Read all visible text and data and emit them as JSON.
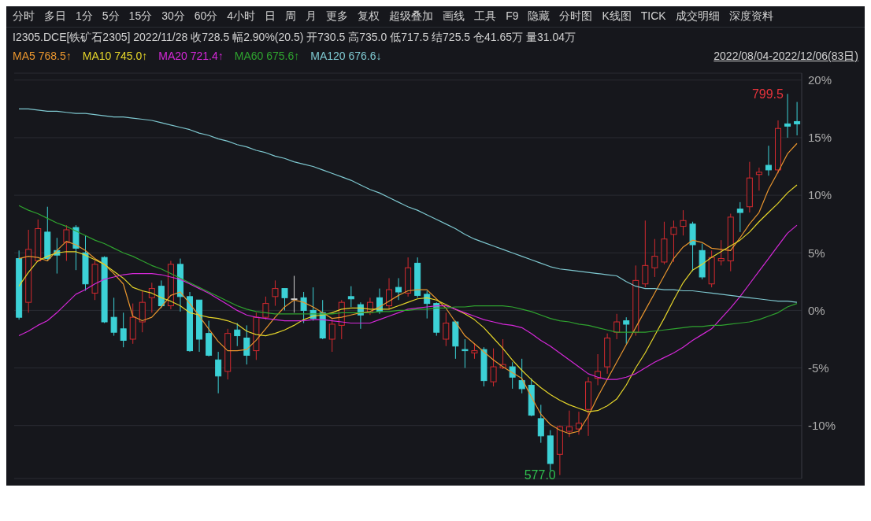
{
  "chart_data": {
    "type": "candlestick",
    "title": "I2305.DCE[铁矿石2305]  2022/11/28 收728.5 幅2.90%(20.5) 开730.5 高735.0 低717.5 结725.5 仓41.65万 量31.04万",
    "subtitle": "2022/08/04-2022/12/06(83日)",
    "annotations": [
      "分时",
      "多日",
      "1分",
      "5分",
      "15分",
      "30分",
      "60分",
      "4小时",
      "日",
      "周",
      "月",
      "更多",
      "复权",
      "超级叠加",
      "画线",
      "工具",
      "F9",
      "隐藏",
      "分时图",
      "K线图",
      "TICK",
      "成交明细",
      "深度资料",
      "799.5",
      "577.0"
    ],
    "categories": [
      null,
      null,
      null,
      null,
      null,
      null,
      null,
      null,
      null,
      null,
      null,
      null,
      null,
      null,
      null,
      null,
      null,
      null,
      null,
      null,
      null,
      null,
      null,
      null,
      null,
      null,
      null,
      null,
      null,
      null,
      null,
      null,
      null,
      null,
      null,
      null,
      null,
      null,
      null,
      null,
      null,
      null,
      null,
      null,
      null,
      null,
      null,
      null,
      null,
      null,
      null,
      null,
      null,
      null,
      null,
      null,
      null,
      null,
      null,
      null,
      null,
      null,
      null,
      null,
      null,
      null,
      null,
      null,
      null,
      null,
      null,
      null,
      null,
      null,
      null,
      null,
      null,
      null,
      null,
      null,
      null,
      null,
      null
    ],
    "ohlc": [
      [
        4.5,
        5.2,
        -0.8,
        -0.6
      ],
      [
        0.7,
        7.0,
        -0.2,
        5.3
      ],
      [
        4.3,
        7.9,
        4.2,
        7.1
      ],
      [
        6.8,
        9.0,
        4.3,
        4.5
      ],
      [
        5.2,
        6.3,
        3.2,
        4.8
      ],
      [
        5.9,
        7.4,
        4.3,
        7.0
      ],
      [
        7.2,
        7.4,
        3.5,
        5.4
      ],
      [
        5.0,
        6.5,
        1.7,
        2.3
      ],
      [
        1.5,
        4.3,
        0.9,
        4.0
      ],
      [
        4.6,
        4.7,
        -1.1,
        -1.0
      ],
      [
        -0.6,
        1.1,
        -2.2,
        -1.9
      ],
      [
        -1.6,
        -0.2,
        -3.2,
        -2.6
      ],
      [
        -2.5,
        0.6,
        -2.9,
        -0.6
      ],
      [
        -1.0,
        1.7,
        -1.9,
        0.7
      ],
      [
        1.1,
        2.4,
        -0.2,
        1.9
      ],
      [
        2.1,
        2.6,
        0.2,
        0.4
      ],
      [
        0.4,
        4.3,
        0.1,
        4.0
      ],
      [
        4.0,
        4.5,
        -0.1,
        1.2
      ],
      [
        1.2,
        1.6,
        -3.6,
        -3.5
      ],
      [
        0.9,
        0.9,
        -3.6,
        -2.5
      ],
      [
        -2.0,
        -0.9,
        -4.0,
        -3.9
      ],
      [
        -4.3,
        -3.6,
        -7.2,
        -5.7
      ],
      [
        -5.3,
        -1.6,
        -6.0,
        -2.0
      ],
      [
        -1.7,
        -1.1,
        -3.1,
        -2.2
      ],
      [
        -2.4,
        -1.3,
        -4.7,
        -3.9
      ],
      [
        -3.5,
        -0.2,
        -4.3,
        -0.6
      ],
      [
        -0.6,
        1.2,
        -0.8,
        0.6
      ],
      [
        1.2,
        2.6,
        0.4,
        1.9
      ],
      [
        1.9,
        1.9,
        0.0,
        1.1
      ],
      [
        1.0,
        3.0,
        -0.2,
        1.0
      ],
      [
        1.1,
        1.6,
        -1.1,
        0.0
      ],
      [
        0.0,
        2.0,
        -0.9,
        -0.7
      ],
      [
        -0.2,
        0.9,
        -2.5,
        -2.4
      ],
      [
        -2.5,
        -0.8,
        -3.6,
        -1.2
      ],
      [
        -1.3,
        0.9,
        -2.5,
        0.7
      ],
      [
        1.2,
        2.1,
        0.3,
        1.0
      ],
      [
        0.5,
        0.7,
        -1.6,
        -0.4
      ],
      [
        -0.2,
        1.1,
        -0.4,
        0.7
      ],
      [
        1.1,
        1.9,
        -0.3,
        -0.1
      ],
      [
        0.4,
        2.8,
        0.1,
        1.8
      ],
      [
        2.0,
        2.8,
        0.9,
        1.6
      ],
      [
        1.5,
        4.6,
        1.2,
        3.7
      ],
      [
        4.1,
        4.6,
        1.1,
        1.3
      ],
      [
        1.4,
        1.7,
        -0.7,
        0.6
      ],
      [
        0.6,
        0.7,
        -2.2,
        -1.9
      ],
      [
        -2.5,
        -0.2,
        -3.1,
        -1.1
      ],
      [
        -1.0,
        -0.9,
        -4.2,
        -3.1
      ],
      [
        -3.4,
        -2.5,
        -5.0,
        -3.5
      ],
      [
        -3.7,
        -2.9,
        -4.2,
        -3.5
      ],
      [
        -3.4,
        -3.2,
        -6.6,
        -6.1
      ],
      [
        -6.2,
        -3.3,
        -6.6,
        -4.9
      ],
      [
        -5.0,
        -2.5,
        -5.1,
        -4.7
      ],
      [
        -4.9,
        -4.5,
        -6.8,
        -5.8
      ],
      [
        -6.1,
        -4.2,
        -7.2,
        -6.8
      ],
      [
        -6.5,
        -5.9,
        -9.2,
        -9.1
      ],
      [
        -9.4,
        -8.2,
        -11.5,
        -10.9
      ],
      [
        -10.9,
        -10.4,
        -13.9,
        -13.3
      ],
      [
        -12.5,
        -10.0,
        -14.3,
        -10.1
      ],
      [
        -10.5,
        -8.7,
        -11.0,
        -10.1
      ],
      [
        -10.3,
        -8.8,
        -10.8,
        -9.8
      ],
      [
        -8.6,
        -5.8,
        -10.9,
        -6.2
      ],
      [
        -5.9,
        -3.8,
        -6.5,
        -5.3
      ],
      [
        -4.9,
        -2.0,
        -5.5,
        -2.4
      ],
      [
        -1.9,
        -0.3,
        -2.5,
        -1.0
      ],
      [
        -0.9,
        -0.6,
        -2.9,
        -1.2
      ],
      [
        -1.9,
        3.9,
        -2.2,
        2.6
      ],
      [
        2.3,
        7.8,
        2.0,
        3.9
      ],
      [
        3.7,
        6.2,
        2.9,
        4.7
      ],
      [
        4.2,
        7.7,
        4.0,
        6.2
      ],
      [
        6.6,
        7.8,
        4.2,
        7.2
      ],
      [
        7.3,
        8.7,
        6.5,
        7.8
      ],
      [
        7.5,
        7.7,
        3.4,
        5.7
      ],
      [
        5.2,
        5.8,
        2.7,
        2.9
      ],
      [
        2.3,
        5.2,
        2.0,
        4.6
      ],
      [
        4.3,
        6.1,
        3.9,
        4.5
      ],
      [
        4.3,
        8.4,
        3.4,
        8.1
      ],
      [
        8.8,
        9.4,
        6.8,
        8.5
      ],
      [
        9.0,
        12.9,
        8.5,
        11.5
      ],
      [
        11.8,
        12.4,
        10.4,
        12.0
      ],
      [
        12.6,
        14.3,
        11.7,
        12.2
      ],
      [
        12.2,
        16.5,
        11.9,
        15.8
      ],
      [
        16.2,
        18.8,
        15.0,
        16.0
      ],
      [
        16.4,
        18.1,
        15.2,
        16.2
      ]
    ],
    "colors": [
      "#3cd1d6",
      "#d42a2f",
      "#d42a2f",
      "#3cd1d6",
      "#3cd1d6",
      "#d42a2f",
      "#3cd1d6",
      "#3cd1d6",
      "#d42a2f",
      "#3cd1d6",
      "#3cd1d6",
      "#3cd1d6",
      "#d42a2f",
      "#d42a2f",
      "#d42a2f",
      "#3cd1d6",
      "#d42a2f",
      "#3cd1d6",
      "#3cd1d6",
      "#3cd1d6",
      "#3cd1d6",
      "#3cd1d6",
      "#d42a2f",
      "#3cd1d6",
      "#3cd1d6",
      "#d42a2f",
      "#d42a2f",
      "#d42a2f",
      "#3cd1d6",
      "#d0d0d0",
      "#3cd1d6",
      "#3cd1d6",
      "#3cd1d6",
      "#d42a2f",
      "#d42a2f",
      "#3cd1d6",
      "#3cd1d6",
      "#d42a2f",
      "#3cd1d6",
      "#d42a2f",
      "#3cd1d6",
      "#d42a2f",
      "#3cd1d6",
      "#3cd1d6",
      "#3cd1d6",
      "#d42a2f",
      "#3cd1d6",
      "#3cd1d6",
      "#d42a2f",
      "#3cd1d6",
      "#d42a2f",
      "#d42a2f",
      "#3cd1d6",
      "#3cd1d6",
      "#3cd1d6",
      "#3cd1d6",
      "#3cd1d6",
      "#d42a2f",
      "#d42a2f",
      "#d42a2f",
      "#d42a2f",
      "#d42a2f",
      "#d42a2f",
      "#d42a2f",
      "#3cd1d6",
      "#d42a2f",
      "#d42a2f",
      "#d42a2f",
      "#d42a2f",
      "#d42a2f",
      "#d42a2f",
      "#3cd1d6",
      "#3cd1d6",
      "#d42a2f",
      "#d42a2f",
      "#d42a2f",
      "#3cd1d6",
      "#d42a2f",
      "#d42a2f",
      "#3cd1d6",
      "#d42a2f",
      "#3cd1d6",
      "#3cd1d6"
    ],
    "series": [
      {
        "type": "line",
        "name": "MA5 768.5↑",
        "color": "#e8952e",
        "values": [
          4.5,
          4.7,
          4.6,
          4.3,
          5.2,
          6.0,
          5.7,
          5.2,
          4.5,
          4.0,
          3.2,
          2.3,
          -0.5,
          -0.9,
          -0.6,
          0.3,
          1.3,
          1.6,
          0.6,
          -0.5,
          -1.6,
          -2.7,
          -3.5,
          -3.5,
          -3.4,
          -2.6,
          -1.6,
          -0.6,
          0.3,
          0.9,
          0.7,
          0.3,
          -0.2,
          -0.7,
          -0.6,
          -0.4,
          -0.2,
          -0.1,
          0.3,
          0.8,
          1.3,
          1.7,
          1.8,
          1.8,
          1.0,
          0.2,
          -1.0,
          -2.2,
          -2.9,
          -3.6,
          -4.3,
          -4.9,
          -5.4,
          -5.9,
          -7.5,
          -9.0,
          -9.9,
          -10.4,
          -10.7,
          -10.5,
          -9.2,
          -7.5,
          -6.0,
          -4.5,
          -3.0,
          -1.5,
          0.0,
          1.5,
          3.0,
          4.5,
          5.5,
          6.1,
          5.9,
          5.4,
          5.3,
          5.2,
          6.3,
          7.5,
          8.5,
          10.5,
          12.0,
          13.6,
          14.5
        ]
      },
      {
        "type": "line",
        "name": "MA10 745.0↑",
        "color": "#e5d52a",
        "values": [
          2.1,
          3.3,
          4.3,
          4.7,
          5.0,
          5.1,
          5.1,
          4.8,
          4.4,
          4.0,
          3.4,
          2.8,
          2.0,
          1.7,
          1.5,
          1.1,
          0.8,
          0.4,
          -0.2,
          -0.4,
          -0.6,
          -0.7,
          -0.9,
          -1.2,
          -1.8,
          -2.1,
          -2.2,
          -2.0,
          -1.7,
          -1.3,
          -0.8,
          -0.5,
          -0.4,
          -0.2,
          0.1,
          0.2,
          0.2,
          0.1,
          0.1,
          0.1,
          0.4,
          0.7,
          1.0,
          1.1,
          0.9,
          0.5,
          0.1,
          -0.3,
          -0.8,
          -1.5,
          -2.4,
          -3.3,
          -4.3,
          -5.2,
          -6.0,
          -6.7,
          -7.3,
          -7.8,
          -8.2,
          -8.5,
          -8.8,
          -8.7,
          -8.3,
          -7.7,
          -6.5,
          -5.0,
          -3.7,
          -2.2,
          -0.7,
          0.9,
          2.4,
          3.5,
          4.0,
          4.6,
          5.1,
          5.6,
          6.1,
          6.8,
          7.7,
          8.5,
          9.3,
          10.2,
          10.9
        ]
      },
      {
        "type": "line",
        "name": "MA20 721.4↑",
        "color": "#d528d8",
        "values": [
          -2.2,
          -1.8,
          -1.3,
          -0.9,
          -0.2,
          0.6,
          1.4,
          1.8,
          2.3,
          2.7,
          2.9,
          3.1,
          3.2,
          3.2,
          3.2,
          3.1,
          2.9,
          2.7,
          2.3,
          1.9,
          1.5,
          1.0,
          0.5,
          0.0,
          -0.4,
          -0.6,
          -0.7,
          -0.8,
          -0.9,
          -0.9,
          -0.9,
          -0.8,
          -0.8,
          -0.9,
          -1.0,
          -1.1,
          -1.1,
          -1.1,
          -0.8,
          -0.5,
          -0.2,
          0.1,
          0.2,
          0.3,
          0.4,
          0.4,
          0.1,
          -0.2,
          -0.5,
          -0.8,
          -1.0,
          -1.2,
          -1.3,
          -1.5,
          -2.0,
          -2.6,
          -3.1,
          -3.7,
          -4.3,
          -4.9,
          -5.5,
          -5.8,
          -6.0,
          -6.0,
          -5.8,
          -5.5,
          -5.0,
          -4.5,
          -4.1,
          -3.7,
          -3.2,
          -2.6,
          -2.1,
          -1.6,
          -0.7,
          0.2,
          1.2,
          2.3,
          3.4,
          4.5,
          5.6,
          6.7,
          7.4
        ]
      },
      {
        "type": "line",
        "name": "MA60 675.6↑",
        "color": "#2fa32f",
        "values": [
          9.1,
          8.7,
          8.4,
          8.0,
          7.6,
          7.3,
          6.9,
          6.5,
          6.1,
          5.8,
          5.4,
          5.0,
          4.7,
          4.3,
          3.9,
          3.6,
          3.2,
          2.8,
          2.4,
          2.0,
          1.6,
          1.2,
          0.8,
          0.4,
          0.1,
          -0.1,
          -0.2,
          -0.3,
          -0.3,
          -0.3,
          -0.3,
          -0.3,
          -0.3,
          -0.3,
          -0.2,
          -0.2,
          -0.2,
          -0.2,
          -0.1,
          -0.1,
          0.0,
          0.0,
          0.1,
          0.1,
          0.2,
          0.2,
          0.3,
          0.3,
          0.4,
          0.4,
          0.4,
          0.4,
          0.3,
          0.1,
          -0.1,
          -0.4,
          -0.7,
          -0.9,
          -1.0,
          -1.2,
          -1.3,
          -1.5,
          -1.7,
          -1.9,
          -1.9,
          -1.9,
          -1.9,
          -1.8,
          -1.7,
          -1.6,
          -1.5,
          -1.4,
          -1.4,
          -1.3,
          -1.3,
          -1.2,
          -1.1,
          -1.0,
          -0.8,
          -0.5,
          -0.2,
          0.3,
          0.6
        ]
      },
      {
        "type": "line",
        "name": "MA120 676.6↓",
        "color": "#7ec8d0",
        "values": [
          17.5,
          17.5,
          17.4,
          17.3,
          17.3,
          17.2,
          17.1,
          17.1,
          17.0,
          16.9,
          16.8,
          16.8,
          16.7,
          16.6,
          16.5,
          16.3,
          16.1,
          15.9,
          15.7,
          15.4,
          15.2,
          14.9,
          14.7,
          14.4,
          14.2,
          13.9,
          13.7,
          13.4,
          13.2,
          12.9,
          12.7,
          12.5,
          12.2,
          11.9,
          11.6,
          11.3,
          10.9,
          10.5,
          10.2,
          9.8,
          9.4,
          9.0,
          8.7,
          8.3,
          7.9,
          7.5,
          7.1,
          6.6,
          6.2,
          5.9,
          5.6,
          5.3,
          5.0,
          4.7,
          4.4,
          4.1,
          3.8,
          3.6,
          3.5,
          3.4,
          3.3,
          3.2,
          3.1,
          3.0,
          2.5,
          2.1,
          1.9,
          1.9,
          1.8,
          1.8,
          1.7,
          1.7,
          1.6,
          1.5,
          1.4,
          1.3,
          1.2,
          1.1,
          1.0,
          0.9,
          0.8,
          0.8,
          0.7
        ]
      }
    ],
    "ylim": [
      -14.6,
      20.6
    ],
    "yticks": [
      {
        "value": 20,
        "label": "20%"
      },
      {
        "value": 15,
        "label": "15%"
      },
      {
        "value": 10,
        "label": "10%"
      },
      {
        "value": 5,
        "label": "5%"
      },
      {
        "value": 0,
        "label": "0%"
      },
      {
        "value": -5,
        "label": "-5%"
      },
      {
        "value": -10,
        "label": "-10%"
      }
    ],
    "tick_labels": "y",
    "grid": "y",
    "legend": "top left"
  }
}
